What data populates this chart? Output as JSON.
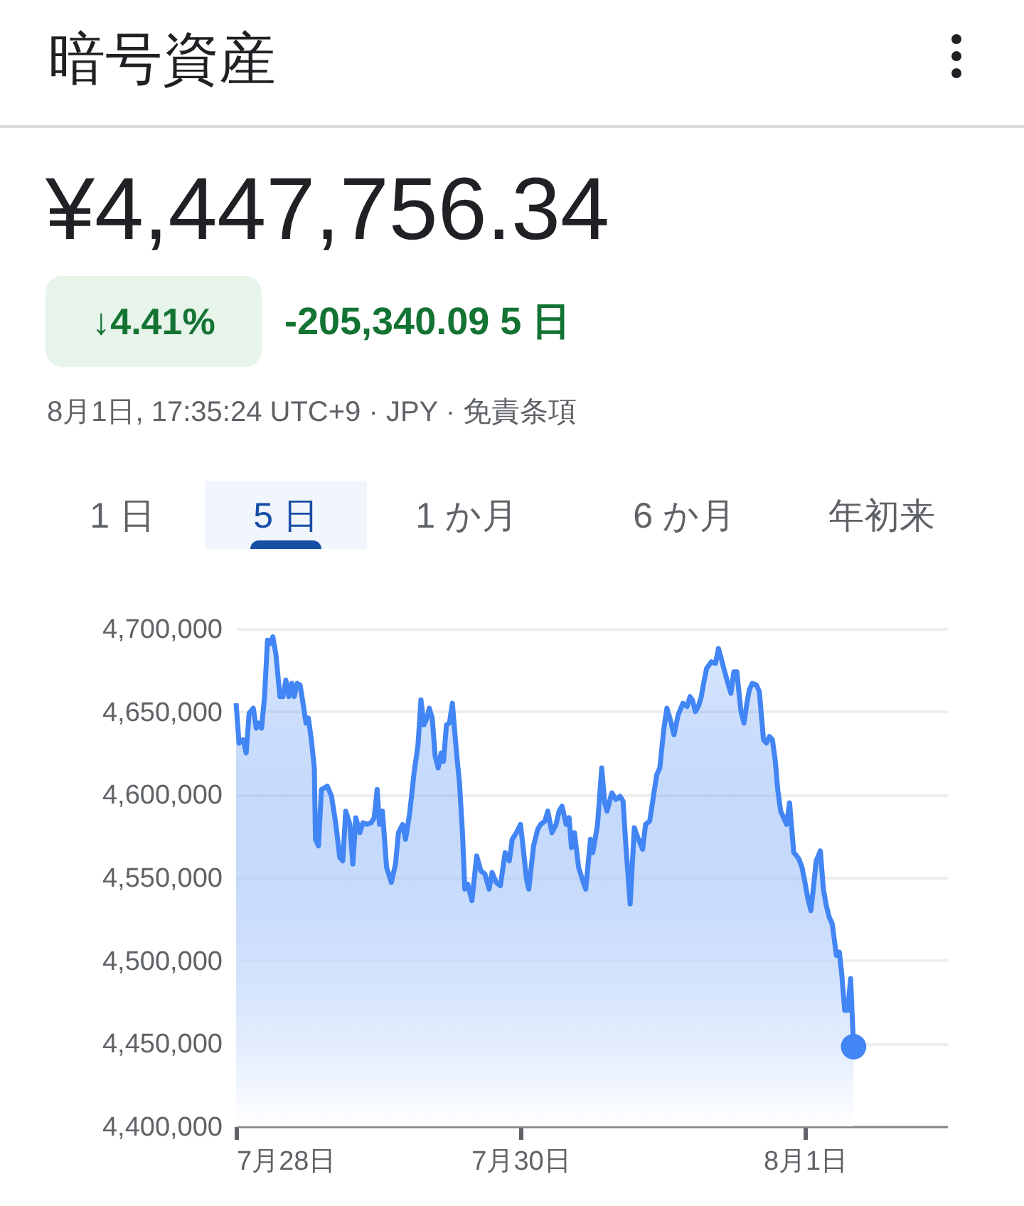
{
  "chart_data": {
    "type": "area",
    "title": "暗号資産",
    "subtitle": "¥4,447,756.34",
    "annotations": [
      "↓4.41%",
      "-205,340.09 5 日",
      "8月1日, 17:35:24 UTC+9 · JPY · 免責条項",
      "1 日",
      "5 日",
      "1 か月",
      "6 か月",
      "年初来"
    ],
    "x": [
      "--07-28T00:00",
      "--07-28T00:30",
      "--07-28T01:12",
      "--07-28T01:42",
      "--07-28T02:12",
      "--07-28T02:54",
      "--07-28T03:24",
      "--07-28T03:48",
      "--07-28T04:18",
      "--07-28T04:48",
      "--07-28T05:18",
      "--07-28T05:48",
      "--07-28T06:12",
      "--07-28T06:42",
      "--07-28T07:24",
      "--07-28T07:54",
      "--07-28T08:24",
      "--07-28T08:54",
      "--07-28T09:24",
      "--07-28T09:48",
      "--07-28T10:18",
      "--07-28T10:48",
      "--07-28T11:18",
      "--07-28T11:48",
      "--07-28T12:12",
      "--07-28T12:42",
      "--07-28T13:12",
      "--07-28T13:24",
      "--07-28T13:54",
      "--07-28T14:24",
      "--07-28T15:24",
      "--07-28T16:06",
      "--07-28T16:48",
      "--07-28T17:30",
      "--07-28T18:00",
      "--07-28T18:30",
      "--07-28T19:12",
      "--07-28T19:42",
      "--07-28T20:12",
      "--07-28T20:54",
      "--07-28T21:24",
      "--07-28T22:06",
      "--07-28T22:48",
      "--07-28T23:18",
      "--07-28T23:48",
      "--07-29T00:12",
      "--07-29T00:42",
      "--07-29T01:24",
      "--07-29T02:12",
      "--07-29T02:54",
      "--07-29T03:24",
      "--07-29T04:06",
      "--07-29T04:36",
      "--07-29T05:18",
      "--07-29T06:00",
      "--07-29T06:42",
      "--07-29T07:12",
      "--07-29T07:42",
      "--07-29T08:12",
      "--07-29T08:36",
      "--07-29T09:06",
      "--07-29T09:36",
      "--07-29T10:06",
      "--07-29T10:36",
      "--07-29T11:00",
      "--07-29T11:30",
      "--07-29T12:00",
      "--07-29T12:30",
      "--07-29T13:12",
      "--07-29T13:42",
      "--07-29T14:12",
      "--07-29T14:36",
      "--07-29T15:06",
      "--07-29T15:48",
      "--07-29T16:36",
      "--07-29T17:18",
      "--07-29T18:00",
      "--07-29T18:42",
      "--07-29T19:12",
      "--07-29T19:54",
      "--07-29T20:36",
      "--07-29T21:24",
      "--07-29T22:06",
      "--07-29T22:36",
      "--07-29T23:18",
      "--07-30T00:00",
      "--07-30T00:30",
      "--07-30T01:00",
      "--07-30T01:24",
      "--07-30T02:12",
      "--07-30T02:54",
      "--07-30T03:24",
      "--07-30T04:06",
      "--07-30T04:36",
      "--07-30T05:18",
      "--07-30T06:00",
      "--07-30T06:30",
      "--07-30T07:00",
      "--07-30T07:42",
      "--07-30T08:12",
      "--07-30T08:36",
      "--07-30T09:06",
      "--07-30T09:48",
      "--07-30T10:36",
      "--07-30T11:00",
      "--07-30T11:48",
      "--07-30T12:12",
      "--07-30T13:00",
      "--07-30T13:42",
      "--07-30T14:12",
      "--07-30T14:36",
      "--07-30T15:24",
      "--07-30T16:06",
      "--07-30T16:48",
      "--07-30T17:18",
      "--07-30T17:48",
      "--07-30T18:30",
      "--07-30T19:12",
      "--07-30T19:54",
      "--07-30T20:36",
      "--07-30T21:06",
      "--07-30T21:48",
      "--07-30T22:36",
      "--07-30T23:00",
      "--07-30T23:30",
      "--07-31T00:12",
      "--07-31T00:42",
      "--07-31T01:12",
      "--07-31T01:54",
      "--07-31T02:36",
      "--07-31T03:24",
      "--07-31T04:06",
      "--07-31T04:36",
      "--07-31T05:00",
      "--07-31T05:30",
      "--07-31T06:00",
      "--07-31T06:30",
      "--07-31T07:00",
      "--07-31T07:24",
      "--07-31T08:12",
      "--07-31T08:54",
      "--07-31T09:24",
      "--07-31T09:48",
      "--07-31T10:18",
      "--07-31T11:00",
      "--07-31T11:30",
      "--07-31T12:00",
      "--07-31T12:30",
      "--07-31T13:12",
      "--07-31T13:42",
      "--07-31T14:12",
      "--07-31T14:36",
      "--07-31T15:06",
      "--07-31T15:48",
      "--07-31T16:18",
      "--07-31T17:00",
      "--07-31T17:30",
      "--07-31T18:00",
      "--07-31T18:30",
      "--07-31T19:00",
      "--07-31T19:24",
      "--07-31T19:54",
      "--07-31T20:24",
      "--07-31T20:54",
      "--07-31T21:24",
      "--07-31T22:06",
      "--07-31T22:36",
      "--07-31T23:00",
      "--07-31T23:30",
      "--08-01T00:00",
      "--08-01T00:30",
      "--08-01T01:00",
      "--08-01T01:24",
      "--08-01T01:54",
      "--08-01T02:36",
      "--08-01T03:06",
      "--08-01T03:36",
      "--08-01T04:06",
      "--08-01T04:36",
      "--08-01T05:18",
      "--08-01T05:48",
      "--08-01T06:12",
      "--08-01T06:42",
      "--08-01T07:12",
      "--08-01T07:42",
      "--08-01T08:12"
    ],
    "series": [
      {
        "color": "#4285f4",
        "values": [
          4655000,
          4631000,
          4633000,
          4625000,
          4649000,
          4652000,
          4640000,
          4643000,
          4640000,
          4659000,
          4693000,
          4691000,
          4695000,
          4685000,
          4659000,
          4659000,
          4669000,
          4659000,
          4667000,
          4659000,
          4667000,
          4666000,
          4655000,
          4643000,
          4646000,
          4633000,
          4616000,
          4573000,
          4569000,
          4603000,
          4605000,
          4599000,
          4583000,
          4562000,
          4560000,
          4590000,
          4582000,
          4558000,
          4586000,
          4577000,
          4583000,
          4582000,
          4583000,
          4586000,
          4603000,
          4582000,
          4590000,
          4556000,
          4547000,
          4558000,
          4577000,
          4582000,
          4573000,
          4589000,
          4612000,
          4630000,
          4657000,
          4642000,
          4646000,
          4652000,
          4646000,
          4623000,
          4616000,
          4625000,
          4620000,
          4642000,
          4643000,
          4655000,
          4625000,
          4607000,
          4577000,
          4543000,
          4546000,
          4536000,
          4563000,
          4554000,
          4552000,
          4543000,
          4553000,
          4547000,
          4545000,
          4565000,
          4560000,
          4573000,
          4577000,
          4582000,
          4566000,
          4549000,
          4543000,
          4569000,
          4579000,
          4582000,
          4584000,
          4590000,
          4577000,
          4582000,
          4590000,
          4593000,
          4582000,
          4586000,
          4568000,
          4577000,
          4556000,
          4547000,
          4543000,
          4573000,
          4565000,
          4582000,
          4616000,
          4595000,
          4590000,
          4601000,
          4597000,
          4599000,
          4596000,
          4568000,
          4534000,
          4580000,
          4573000,
          4567000,
          4582000,
          4584000,
          4603000,
          4612000,
          4616000,
          4640000,
          4652000,
          4646000,
          4636000,
          4648000,
          4655000,
          4653000,
          4659000,
          4657000,
          4650000,
          4653000,
          4659000,
          4669000,
          4676000,
          4680000,
          4679000,
          4688000,
          4683000,
          4676000,
          4667000,
          4661000,
          4674000,
          4674000,
          4650000,
          4643000,
          4655000,
          4663000,
          4667000,
          4666000,
          4662000,
          4633000,
          4631000,
          4635000,
          4633000,
          4620000,
          4603000,
          4590000,
          4586000,
          4582000,
          4595000,
          4565000,
          4563000,
          4561000,
          4556000,
          4547000,
          4537000,
          4530000,
          4543000,
          4560000,
          4566000,
          4543000,
          4533000,
          4526000,
          4522000,
          4503000,
          4505000,
          4492000,
          4470000,
          4470000,
          4489000,
          4448000
        ]
      }
    ],
    "xlim": [
      "--07-28T00:00",
      "--08-02T00:00"
    ],
    "xticks": [
      {
        "value": "--07-28",
        "label": "7月28日"
      },
      {
        "value": "--07-30",
        "label": "7月30日"
      },
      {
        "value": "--08-01",
        "label": "8月1日"
      }
    ],
    "ylim": [
      4400000,
      4700000
    ],
    "yticks": [
      {
        "value": 4400000,
        "label": "4,400,000"
      },
      {
        "value": 4450000,
        "label": "4,450,000"
      },
      {
        "value": 4500000,
        "label": "4,500,000"
      },
      {
        "value": 4550000,
        "label": "4,550,000"
      },
      {
        "value": 4600000,
        "label": "4,600,000"
      },
      {
        "value": 4650000,
        "label": "4,650,000"
      },
      {
        "value": 4700000,
        "label": "4,700,000"
      }
    ],
    "grid": "y"
  }
}
